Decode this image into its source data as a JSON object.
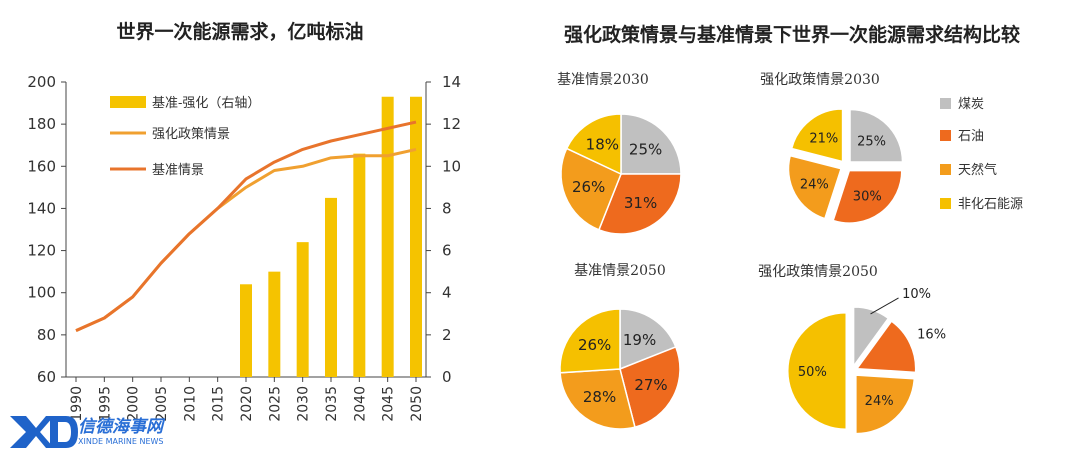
{
  "colors": {
    "bar": "#f5c300",
    "enhanced_line": "#f0a030",
    "baseline_line": "#e8742c",
    "coal": "#c0c0c0",
    "oil": "#ee6a1e",
    "gas": "#f39c1c",
    "non_fossil": "#f5c000",
    "axis": "#444444",
    "watermark": "#2a6fd6"
  },
  "left_chart": {
    "title": "世界一次能源需求，亿吨标油",
    "legend": [
      "基准-强化（右轴）",
      "强化政策情景",
      "基准情景"
    ]
  },
  "right_panel": {
    "title": "强化政策情景与基准情景下世界一次能源需求结构比较",
    "legend": [
      "煤炭",
      "石油",
      "天然气",
      "非化石能源"
    ]
  },
  "watermark": {
    "logo": "XD",
    "name_cn": "信德海事网",
    "name_en": "XINDE MARINE NEWS"
  },
  "chart_data": [
    {
      "type": "bar+line",
      "title": "世界一次能源需求，亿吨标油",
      "categories": [
        "1990",
        "1995",
        "2000",
        "2005",
        "2010",
        "2015",
        "2020",
        "2025",
        "2030",
        "2035",
        "2040",
        "2045",
        "2050"
      ],
      "y_left_ticks": [
        60,
        80,
        100,
        120,
        140,
        160,
        180,
        200
      ],
      "y_right_ticks": [
        0,
        2,
        4,
        6,
        8,
        10,
        12,
        14
      ],
      "ylim_left": [
        60,
        200
      ],
      "ylim_right": [
        0,
        14
      ],
      "legend_position": "top-left",
      "grid": false,
      "series": [
        {
          "name": "基准-强化（右轴）",
          "type": "bar",
          "axis": "right",
          "values": [
            null,
            null,
            null,
            null,
            null,
            null,
            4.4,
            5.0,
            6.4,
            8.5,
            10.6,
            13.3,
            13.3
          ]
        },
        {
          "name": "强化政策情景",
          "type": "line",
          "axis": "left",
          "values": [
            82,
            88,
            98,
            114,
            128,
            140,
            150,
            158,
            160,
            164,
            165,
            165,
            168
          ]
        },
        {
          "name": "基准情景",
          "type": "line",
          "axis": "left",
          "values": [
            82,
            88,
            98,
            114,
            128,
            140,
            154,
            162,
            168,
            172,
            175,
            178,
            181
          ]
        }
      ]
    },
    {
      "type": "pie",
      "title": "基准情景2030",
      "exploded": false,
      "slices": [
        {
          "name": "煤炭",
          "value": 25,
          "label": "25%"
        },
        {
          "name": "石油",
          "value": 31,
          "label": "31%"
        },
        {
          "name": "天然气",
          "value": 26,
          "label": "26%"
        },
        {
          "name": "非化石能源",
          "value": 18,
          "label": "18%"
        }
      ]
    },
    {
      "type": "pie",
      "title": "强化政策情景2030",
      "exploded": true,
      "slices": [
        {
          "name": "煤炭",
          "value": 25,
          "label": "25%"
        },
        {
          "name": "石油",
          "value": 30,
          "label": "30%"
        },
        {
          "name": "天然气",
          "value": 24,
          "label": "24%"
        },
        {
          "name": "非化石能源",
          "value": 21,
          "label": "21%"
        }
      ]
    },
    {
      "type": "pie",
      "title": "基准情景2050",
      "exploded": false,
      "slices": [
        {
          "name": "煤炭",
          "value": 19,
          "label": "19%"
        },
        {
          "name": "石油",
          "value": 27,
          "label": "27%"
        },
        {
          "name": "天然气",
          "value": 28,
          "label": "28%"
        },
        {
          "name": "非化石能源",
          "value": 26,
          "label": "26%"
        }
      ]
    },
    {
      "type": "pie",
      "title": "强化政策情景2050",
      "exploded": true,
      "slices": [
        {
          "name": "煤炭",
          "value": 10,
          "label": "10%"
        },
        {
          "name": "石油",
          "value": 16,
          "label": "16%"
        },
        {
          "name": "天然气",
          "value": 24,
          "label": "24%"
        },
        {
          "name": "非化石能源",
          "value": 50,
          "label": "50%"
        }
      ]
    }
  ]
}
